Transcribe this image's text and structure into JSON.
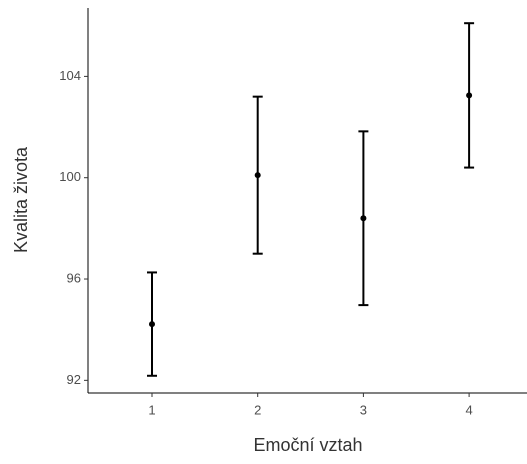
{
  "chart_data": {
    "type": "errorbar",
    "xlabel": "Emoční vztah",
    "ylabel": "Kvalita života",
    "categories": [
      "1",
      "2",
      "3",
      "4"
    ],
    "values": [
      94.22,
      100.1,
      98.4,
      103.25
    ],
    "errors": [
      2.04,
      3.1,
      3.43,
      2.85
    ],
    "color": "#000000",
    "ylim": [
      91.5,
      106.7
    ],
    "yticks": [
      92,
      96,
      100,
      104
    ],
    "grid": false
  }
}
